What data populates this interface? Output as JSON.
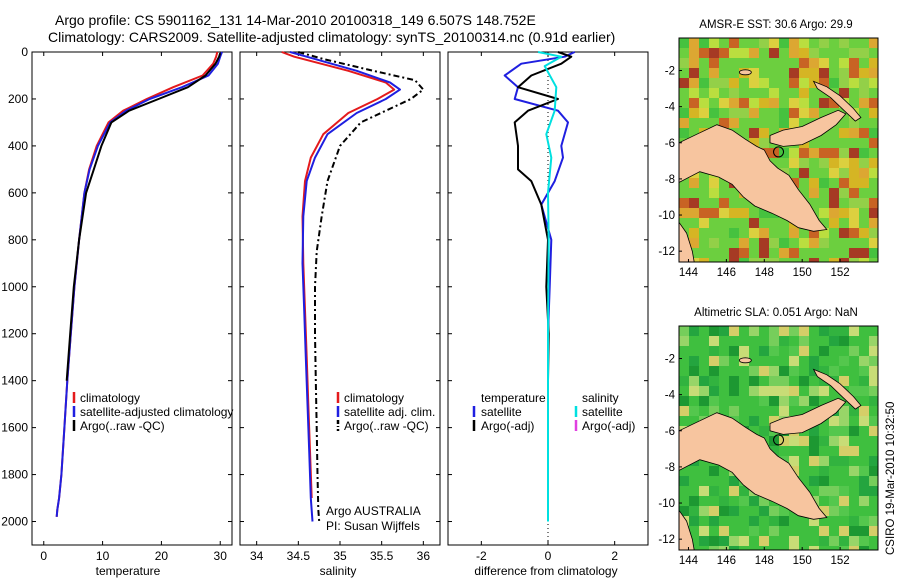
{
  "chart_data": [
    {
      "panel": "temperature",
      "type": "line",
      "title_line1": "Argo profile: CS 5901162_131 14-Mar-2010 20100318_149 6.507S 148.752E",
      "title_line2": "Climatology: CARS2009. Satellite-adjusted climatology: synTS_20100314.nc (0.91d earlier)",
      "xlabel": "temperature",
      "xlim": [
        -2,
        32
      ],
      "xticks": [
        0,
        10,
        20,
        30
      ],
      "ylim": [
        0,
        2100
      ],
      "yticks": [
        0,
        200,
        400,
        600,
        800,
        1000,
        1200,
        1400,
        1600,
        1800,
        2000
      ],
      "y_reversed": true,
      "legend": [
        "climatology",
        "satellite-adjusted climatology",
        "Argo(..raw -QC)"
      ],
      "series": [
        {
          "name": "climatology",
          "color": "#e41a1c",
          "style": "solid",
          "x": [
            29.5,
            29.3,
            28.8,
            27.0,
            22.0,
            17.5,
            13.5,
            11.0,
            9.0,
            7.7,
            6.9,
            6.0,
            5.2,
            4.6,
            4.0,
            3.5,
            3.0,
            2.6,
            2.3,
            2.2
          ],
          "y": [
            0,
            20,
            50,
            100,
            150,
            200,
            250,
            300,
            400,
            500,
            600,
            800,
            1000,
            1200,
            1400,
            1600,
            1800,
            1900,
            1950,
            1980
          ]
        },
        {
          "name": "satellite-adjusted climatology",
          "color": "#1f1fe0",
          "style": "solid",
          "x": [
            30.3,
            30.0,
            29.6,
            28.0,
            23.5,
            18.0,
            14.0,
            11.3,
            9.2,
            7.8,
            6.9,
            6.0,
            5.2,
            4.6,
            4.0,
            3.5,
            3.0,
            2.6,
            2.3,
            2.2
          ],
          "y": [
            0,
            20,
            50,
            100,
            150,
            200,
            250,
            300,
            400,
            500,
            600,
            800,
            1000,
            1200,
            1400,
            1600,
            1800,
            1900,
            1950,
            1980
          ]
        },
        {
          "name": "Argo(..raw -QC)",
          "color": "#000000",
          "style": "solid",
          "x": [
            30.0,
            29.8,
            29.2,
            27.5,
            24.5,
            19.5,
            14.5,
            11.5,
            9.8,
            8.5,
            7.2,
            6.0,
            5.1,
            4.5,
            3.9
          ],
          "y": [
            5,
            20,
            50,
            100,
            150,
            200,
            250,
            300,
            400,
            500,
            600,
            800,
            1000,
            1200,
            1400
          ]
        }
      ]
    },
    {
      "panel": "salinity",
      "type": "line",
      "xlabel": "salinity",
      "xlim": [
        33.8,
        36.2
      ],
      "xticks": [
        34,
        34.5,
        35,
        35.5,
        36
      ],
      "ylim": [
        0,
        2100
      ],
      "y_reversed": true,
      "legend": [
        "climatology",
        "satellite adj. clim.",
        "Argo(..raw -QC)"
      ],
      "annotation_line1": "Argo AUSTRALIA",
      "annotation_line2": "PI: Susan Wijffels",
      "series": [
        {
          "name": "climatology",
          "color": "#e41a1c",
          "style": "solid",
          "x": [
            34.3,
            34.45,
            35.1,
            35.55,
            35.65,
            35.45,
            35.1,
            34.8,
            34.65,
            34.58,
            34.55,
            34.56,
            34.58,
            34.6,
            34.62,
            34.64,
            34.66
          ],
          "y": [
            0,
            20,
            80,
            130,
            160,
            200,
            260,
            350,
            450,
            550,
            700,
            900,
            1100,
            1300,
            1500,
            1700,
            1900
          ]
        },
        {
          "name": "satellite adj. clim.",
          "color": "#1f1fe0",
          "style": "solid",
          "x": [
            34.4,
            34.6,
            35.2,
            35.6,
            35.72,
            35.55,
            35.2,
            34.85,
            34.7,
            34.6,
            34.56,
            34.55,
            34.57,
            34.59,
            34.61,
            34.63,
            34.65,
            34.67
          ],
          "y": [
            0,
            20,
            80,
            130,
            160,
            200,
            260,
            350,
            450,
            550,
            700,
            900,
            1100,
            1300,
            1500,
            1700,
            1900,
            2000
          ]
        },
        {
          "name": "Argo(..raw -QC)",
          "color": "#000000",
          "style": "dashdot",
          "x": [
            34.5,
            34.8,
            35.4,
            35.9,
            36.0,
            35.85,
            35.55,
            35.25,
            35.0,
            34.85,
            34.78,
            34.72,
            34.7,
            34.7,
            34.71,
            34.72,
            34.73,
            34.74,
            34.75
          ],
          "y": [
            0,
            30,
            80,
            120,
            160,
            200,
            250,
            300,
            400,
            550,
            700,
            850,
            1000,
            1200,
            1400,
            1600,
            1800,
            1950,
            2000
          ]
        }
      ]
    },
    {
      "panel": "difference",
      "type": "line",
      "xlabel": "difference from climatology",
      "xlim": [
        -3,
        3
      ],
      "xticks": [
        -2,
        0,
        2
      ],
      "ylim": [
        0,
        2100
      ],
      "y_reversed": true,
      "legend_left_title": "temperature",
      "legend_right_title": "salinity",
      "legend": [
        "satellite",
        "Argo(-adj)",
        "satellite",
        "Argo(-adj)"
      ],
      "series": [
        {
          "name": "temperature satellite",
          "color": "#1f1fe0",
          "style": "solid",
          "x": [
            0.8,
            0.5,
            -0.8,
            -1.3,
            -0.9,
            -1.0,
            0.3,
            0.6,
            0.4,
            0.45,
            0.2,
            -0.2,
            0.1,
            0.05,
            0.0,
            0.0,
            0.0,
            0.0
          ],
          "y": [
            0,
            20,
            50,
            100,
            150,
            200,
            250,
            300,
            400,
            450,
            550,
            650,
            800,
            1000,
            1200,
            1400,
            1600,
            1800
          ]
        },
        {
          "name": "temperature Argo(-adj)",
          "color": "#000000",
          "style": "solid",
          "x": [
            0.3,
            0.7,
            0.4,
            -0.5,
            -0.9,
            0.3,
            -0.6,
            -1.0,
            -0.9,
            -0.9,
            -0.5,
            -0.2,
            0.0,
            -0.05,
            0.02,
            0.0
          ],
          "y": [
            0,
            20,
            50,
            100,
            150,
            200,
            250,
            300,
            400,
            500,
            550,
            650,
            800,
            1000,
            1200,
            1400
          ]
        },
        {
          "name": "salinity satellite",
          "color": "#00e0e0",
          "style": "solid",
          "x": [
            -0.3,
            0.4,
            -0.1,
            0.25,
            0.2,
            -0.05,
            0.1,
            0.0,
            0.02,
            0.0,
            0.0
          ],
          "y": [
            0,
            20,
            60,
            150,
            250,
            350,
            450,
            600,
            800,
            1200,
            2000
          ]
        },
        {
          "name": "salinity Argo(-adj)",
          "color": "#e040e0",
          "style": "solid",
          "x": [],
          "y": []
        }
      ]
    },
    {
      "panel": "map-sst",
      "type": "heatmap",
      "title": "AMSR-E SST: 30.6  Argo: 29.9",
      "xlim": [
        143.5,
        154
      ],
      "xticks": [
        144,
        146,
        148,
        150,
        152
      ],
      "ylim": [
        -12.6,
        -0.2
      ],
      "yticks": [
        -2,
        -4,
        -6,
        -8,
        -10,
        -12
      ],
      "argo_position": {
        "lon": 148.752,
        "lat": -6.507
      }
    },
    {
      "panel": "map-sla",
      "type": "heatmap",
      "title": "Altimetric SLA: 0.051  Argo: NaN",
      "xlim": [
        143.5,
        154
      ],
      "xticks": [
        144,
        146,
        148,
        150,
        152
      ],
      "ylim": [
        -12.6,
        -0.2
      ],
      "yticks": [
        -2,
        -4,
        -6,
        -8,
        -10,
        -12
      ],
      "argo_position": {
        "lon": 148.752,
        "lat": -6.507
      }
    }
  ],
  "footer": {
    "credit": "CSIRO 19-Mar-2010 10:32:50"
  },
  "colors": {
    "land": "#f7c59f",
    "sst_base": "#6ccf3f",
    "sla_base": "#3fbf3f"
  }
}
